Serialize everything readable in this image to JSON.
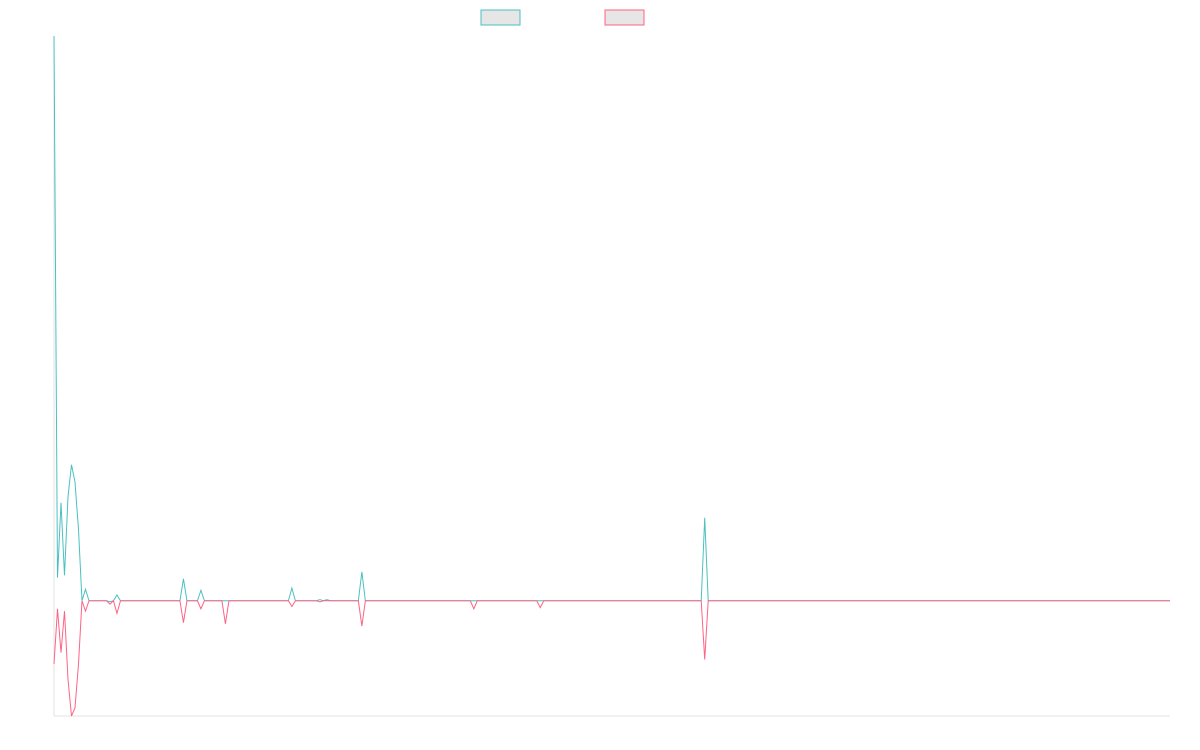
{
  "chart_data": {
    "type": "line",
    "title": "",
    "xlabel": "",
    "ylabel": "",
    "legend_position": "top-center",
    "grid": false,
    "x": [
      0,
      1,
      2,
      3,
      4,
      5,
      6,
      7,
      8,
      9,
      10,
      11,
      12,
      13,
      14,
      15,
      16,
      17,
      18,
      19,
      20,
      21,
      22,
      23,
      24,
      25,
      26,
      27,
      28,
      29,
      30,
      31,
      32,
      33,
      34,
      35,
      36,
      37,
      38,
      39,
      40,
      41,
      42,
      43,
      44,
      45,
      46,
      47,
      48,
      49,
      50,
      51,
      52,
      53,
      54,
      55,
      56,
      57,
      58,
      59,
      60,
      61,
      62,
      63,
      64,
      65,
      66,
      67,
      68,
      69,
      70,
      71,
      72,
      73,
      74,
      75,
      76,
      77,
      78,
      79,
      80,
      81,
      82,
      83,
      84,
      85,
      86,
      87,
      88,
      89,
      90,
      91,
      92,
      93,
      94,
      95,
      96,
      97,
      98,
      99,
      100,
      101,
      102,
      103,
      104,
      105,
      106,
      107,
      108,
      109,
      110,
      111,
      112,
      113,
      114,
      115,
      116,
      117,
      118,
      119,
      120,
      121,
      122,
      123,
      124,
      125,
      126,
      127,
      128,
      129,
      130,
      131,
      132,
      133,
      134,
      135,
      136,
      137,
      138,
      139,
      140,
      141,
      142,
      143,
      144,
      145,
      146,
      147,
      148,
      149,
      150,
      151,
      152,
      153,
      154,
      155,
      156,
      157,
      158,
      159,
      160,
      161,
      162,
      163,
      164,
      165,
      166,
      167,
      168,
      169,
      170,
      171,
      172,
      173,
      174,
      175,
      176,
      177,
      178,
      179,
      180,
      181,
      182,
      183,
      184,
      185,
      186,
      187,
      188,
      189,
      190,
      191,
      192,
      193,
      194,
      195,
      196,
      197,
      198,
      199,
      200,
      201,
      202,
      203,
      204,
      205,
      206,
      207,
      208,
      209,
      210,
      211,
      212,
      213,
      214,
      215,
      216,
      217,
      218,
      219,
      220,
      221,
      222,
      223,
      224,
      225,
      226,
      227,
      228,
      229,
      230,
      231,
      232,
      233,
      234,
      235,
      236,
      237,
      238,
      239,
      240,
      241,
      242,
      243,
      244,
      245,
      246,
      247,
      248,
      249,
      250,
      251,
      252,
      253,
      254,
      255,
      256,
      257,
      258,
      259,
      260,
      261,
      262,
      263,
      264,
      265,
      266,
      267,
      268,
      269,
      270,
      271,
      272,
      273,
      274,
      275,
      276,
      277,
      278,
      279,
      280,
      281,
      282,
      283,
      284,
      285,
      286,
      287,
      288,
      289,
      290,
      291,
      292,
      293,
      294,
      295,
      296,
      297,
      298,
      299,
      300,
      301,
      302,
      303,
      304,
      305,
      306,
      307,
      308,
      309,
      310,
      311,
      312,
      313,
      314,
      315,
      316,
      317,
      318,
      319
    ],
    "ylim": [
      -1.0,
      4.9
    ],
    "series": [
      {
        "color": "#4bc0c0",
        "points": [
          [
            0,
            4.9
          ],
          [
            1,
            0.2
          ],
          [
            2,
            0.85
          ],
          [
            3,
            0.22
          ],
          [
            4,
            0.9
          ],
          [
            5,
            1.18
          ],
          [
            6,
            1.03
          ],
          [
            7,
            0.62
          ],
          [
            8,
            0.0
          ],
          [
            9,
            0.1
          ],
          [
            10,
            0.0
          ],
          [
            11,
            0.0
          ],
          [
            12,
            0.0
          ],
          [
            13,
            0.0
          ],
          [
            14,
            0.0
          ],
          [
            15,
            0.0
          ],
          [
            16,
            -0.01
          ],
          [
            17,
            0.0
          ],
          [
            18,
            0.05
          ],
          [
            19,
            0.0
          ],
          [
            36,
            0.0
          ],
          [
            37,
            0.19
          ],
          [
            38,
            0.0
          ],
          [
            41,
            0.0
          ],
          [
            42,
            0.09
          ],
          [
            43,
            0.0
          ],
          [
            67,
            0.0
          ],
          [
            68,
            0.11
          ],
          [
            69,
            0.0
          ],
          [
            75,
            0.0
          ],
          [
            76,
            0.01
          ],
          [
            77,
            0.0
          ],
          [
            78,
            0.01
          ],
          [
            79,
            0.0
          ],
          [
            87,
            0.0
          ],
          [
            88,
            0.25
          ],
          [
            89,
            0.0
          ],
          [
            185,
            0.0
          ],
          [
            186,
            0.72
          ],
          [
            187,
            0.0
          ],
          [
            319,
            0.0
          ]
        ]
      },
      {
        "color": "#ff6384",
        "points": [
          [
            0,
            -0.55
          ],
          [
            1,
            -0.07
          ],
          [
            2,
            -0.45
          ],
          [
            3,
            -0.09
          ],
          [
            4,
            -0.68
          ],
          [
            5,
            -1.0
          ],
          [
            6,
            -0.93
          ],
          [
            7,
            -0.55
          ],
          [
            8,
            0.0
          ],
          [
            9,
            -0.09
          ],
          [
            10,
            0.0
          ],
          [
            11,
            0.0
          ],
          [
            12,
            0.0
          ],
          [
            13,
            0.0
          ],
          [
            14,
            0.0
          ],
          [
            15,
            0.0
          ],
          [
            16,
            -0.03
          ],
          [
            17,
            0.0
          ],
          [
            18,
            -0.11
          ],
          [
            19,
            0.0
          ],
          [
            36,
            0.0
          ],
          [
            37,
            -0.19
          ],
          [
            38,
            0.0
          ],
          [
            41,
            0.0
          ],
          [
            42,
            -0.07
          ],
          [
            43,
            0.0
          ],
          [
            48,
            0.0
          ],
          [
            49,
            -0.2
          ],
          [
            50,
            0.0
          ],
          [
            67,
            0.0
          ],
          [
            68,
            -0.05
          ],
          [
            69,
            0.0
          ],
          [
            75,
            0.0
          ],
          [
            76,
            -0.01
          ],
          [
            77,
            0.0
          ],
          [
            87,
            0.0
          ],
          [
            88,
            -0.22
          ],
          [
            89,
            0.0
          ],
          [
            119,
            0.0
          ],
          [
            120,
            -0.07
          ],
          [
            121,
            0.0
          ],
          [
            138,
            0.0
          ],
          [
            139,
            -0.06
          ],
          [
            140,
            0.0
          ],
          [
            185,
            0.0
          ],
          [
            186,
            -0.51
          ],
          [
            187,
            0.0
          ],
          [
            319,
            0.0
          ]
        ]
      }
    ]
  }
}
